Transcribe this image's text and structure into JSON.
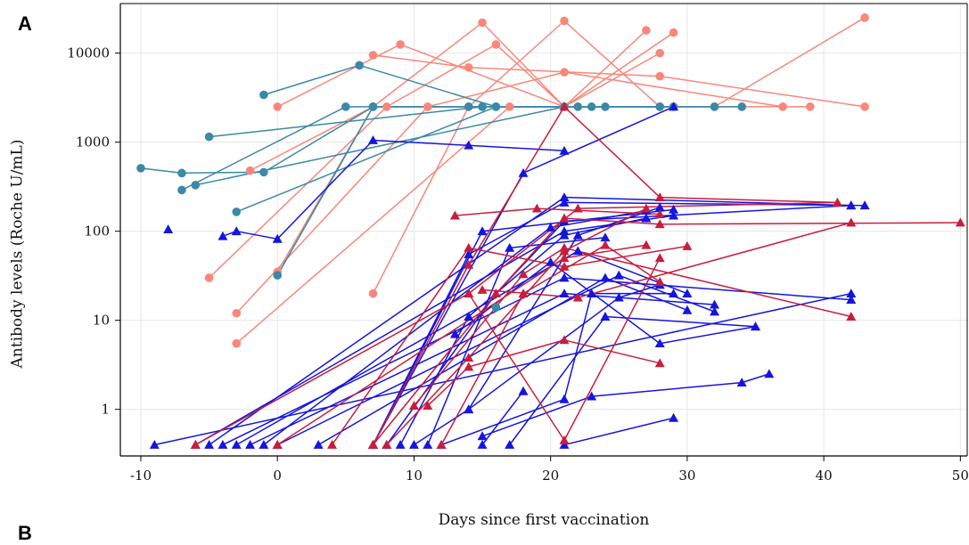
{
  "panel_label": "A",
  "next_panel_label": "B",
  "chart_data": {
    "type": "line",
    "xlabel": "Days since first vaccination",
    "ylabel": "Antibody levels (Roche U/mL)",
    "x_ticks": [
      -10,
      0,
      10,
      20,
      30,
      40,
      50
    ],
    "y_ticks": [
      1,
      10,
      100,
      1000,
      10000
    ],
    "y_tick_labels": [
      "1",
      "10",
      "100",
      "1000",
      "10000"
    ],
    "xlim": [
      -11.5,
      50.5
    ],
    "ylim": [
      0.3,
      36000
    ],
    "yscale": "log",
    "grid": true,
    "colors": {
      "salmon": "#F8877A",
      "teal": "#3A89A6",
      "blue": "#1515DD",
      "red": "#C81D3E"
    },
    "series": [
      {
        "group": "salmon",
        "marker": "circle",
        "points": [
          [
            7,
            9500
          ],
          [
            14,
            6900
          ],
          [
            28,
            5500
          ],
          [
            43,
            2500
          ]
        ]
      },
      {
        "group": "salmon",
        "marker": "circle",
        "points": [
          [
            0,
            2500
          ],
          [
            9,
            12500
          ],
          [
            21,
            2500
          ],
          [
            27,
            18000
          ]
        ]
      },
      {
        "group": "salmon",
        "marker": "circle",
        "points": [
          [
            -2,
            480
          ],
          [
            7,
            2500
          ],
          [
            15,
            22000
          ],
          [
            21,
            2500
          ],
          [
            28,
            10000
          ]
        ]
      },
      {
        "group": "salmon",
        "marker": "circle",
        "points": [
          [
            -5,
            30
          ],
          [
            8,
            2500
          ],
          [
            16,
            12500
          ],
          [
            21,
            2500
          ],
          [
            29,
            17000
          ]
        ]
      },
      {
        "group": "salmon",
        "marker": "circle",
        "points": [
          [
            0,
            35
          ],
          [
            7,
            2500
          ],
          [
            14,
            2500
          ],
          [
            21,
            23000
          ],
          [
            28,
            2500
          ],
          [
            39,
            2500
          ]
        ]
      },
      {
        "group": "salmon",
        "marker": "circle",
        "points": [
          [
            -3,
            12
          ],
          [
            11,
            2500
          ],
          [
            21,
            6100
          ],
          [
            37,
            2500
          ]
        ]
      },
      {
        "group": "salmon",
        "marker": "circle",
        "points": [
          [
            -3,
            5.5
          ],
          [
            17,
            2500
          ],
          [
            28,
            2500
          ]
        ]
      },
      {
        "group": "salmon",
        "marker": "circle",
        "points": [
          [
            7,
            20
          ],
          [
            14,
            2500
          ],
          [
            32,
            2500
          ],
          [
            43,
            25000
          ]
        ]
      },
      {
        "group": "teal",
        "marker": "circle",
        "points": [
          [
            -10,
            510
          ],
          [
            -7,
            450
          ],
          [
            -1,
            460
          ],
          [
            7,
            2500
          ],
          [
            14,
            2500
          ]
        ]
      },
      {
        "group": "teal",
        "marker": "circle",
        "points": [
          [
            -5,
            1150
          ],
          [
            15,
            2500
          ],
          [
            24,
            2500
          ]
        ]
      },
      {
        "group": "teal",
        "marker": "circle",
        "points": [
          [
            -1,
            3400
          ],
          [
            6,
            7300
          ],
          [
            16,
            2500
          ],
          [
            22,
            2500
          ]
        ]
      },
      {
        "group": "teal",
        "marker": "circle",
        "points": [
          [
            -7,
            290
          ],
          [
            5,
            2500
          ],
          [
            15,
            2500
          ],
          [
            28,
            2500
          ]
        ]
      },
      {
        "group": "teal",
        "marker": "circle",
        "points": [
          [
            -6,
            330
          ],
          [
            21,
            2500
          ],
          [
            32,
            2500
          ]
        ]
      },
      {
        "group": "teal",
        "marker": "circle",
        "points": [
          [
            -3,
            165
          ],
          [
            16,
            2500
          ],
          [
            29,
            2500
          ]
        ]
      },
      {
        "group": "teal",
        "marker": "circle",
        "points": [
          [
            0,
            32
          ],
          [
            7,
            2500
          ],
          [
            23,
            2500
          ],
          [
            34,
            2500
          ]
        ]
      },
      {
        "group": "teal",
        "marker": "circle",
        "points": [
          [
            16,
            14
          ]
        ]
      },
      {
        "group": "blue",
        "marker": "triangle",
        "points": [
          [
            -8,
            105
          ]
        ]
      },
      {
        "group": "blue",
        "marker": "triangle",
        "points": [
          [
            -4,
            88
          ],
          [
            -3,
            100
          ],
          [
            0,
            82
          ],
          [
            7,
            1050
          ],
          [
            14,
            920
          ],
          [
            21,
            800
          ]
        ]
      },
      {
        "group": "blue",
        "marker": "triangle",
        "points": [
          [
            -9,
            0.4
          ],
          [
            42,
            20
          ]
        ]
      },
      {
        "group": "blue",
        "marker": "triangle",
        "points": [
          [
            -6,
            0.4
          ],
          [
            21,
            100
          ],
          [
            29,
            150
          ]
        ]
      },
      {
        "group": "blue",
        "marker": "triangle",
        "points": [
          [
            -5,
            0.4
          ],
          [
            21,
            240
          ],
          [
            42,
            195
          ]
        ]
      },
      {
        "group": "blue",
        "marker": "triangle",
        "points": [
          [
            -4,
            0.4
          ],
          [
            21,
            30
          ],
          [
            42,
            17
          ]
        ]
      },
      {
        "group": "blue",
        "marker": "triangle",
        "points": [
          [
            -3,
            0.4
          ],
          [
            22,
            60
          ],
          [
            30,
            20
          ]
        ]
      },
      {
        "group": "blue",
        "marker": "triangle",
        "points": [
          [
            -2,
            0.4
          ],
          [
            21,
            20
          ],
          [
            32,
            15
          ]
        ]
      },
      {
        "group": "blue",
        "marker": "triangle",
        "points": [
          [
            -1,
            0.4
          ],
          [
            20,
            110
          ],
          [
            27,
            170
          ]
        ]
      },
      {
        "group": "blue",
        "marker": "triangle",
        "points": [
          [
            0,
            0.4
          ],
          [
            25,
            32
          ],
          [
            32,
            12.5
          ]
        ]
      },
      {
        "group": "blue",
        "marker": "triangle",
        "points": [
          [
            3,
            0.4
          ],
          [
            24,
            30
          ],
          [
            30,
            13
          ]
        ]
      },
      {
        "group": "blue",
        "marker": "triangle",
        "points": [
          [
            7,
            0.4
          ],
          [
            15,
            100
          ],
          [
            29,
            175
          ]
        ]
      },
      {
        "group": "blue",
        "marker": "triangle",
        "points": [
          [
            7,
            0.4
          ],
          [
            18,
            450
          ],
          [
            29,
            2500
          ]
        ]
      },
      {
        "group": "blue",
        "marker": "triangle",
        "points": [
          [
            7,
            0.4
          ],
          [
            14,
            55
          ],
          [
            21,
            210
          ],
          [
            43,
            195
          ]
        ]
      },
      {
        "group": "blue",
        "marker": "triangle",
        "points": [
          [
            8,
            0.4
          ],
          [
            16,
            20
          ],
          [
            21,
            130
          ],
          [
            42,
            195
          ]
        ]
      },
      {
        "group": "blue",
        "marker": "triangle",
        "points": [
          [
            9,
            0.4
          ],
          [
            14,
            11
          ],
          [
            21,
            90
          ],
          [
            27,
            140
          ]
        ]
      },
      {
        "group": "blue",
        "marker": "triangle",
        "points": [
          [
            10,
            0.4
          ],
          [
            14,
            1.0
          ],
          [
            22,
            90
          ],
          [
            28,
            185
          ]
        ]
      },
      {
        "group": "blue",
        "marker": "triangle",
        "points": [
          [
            11,
            0.4
          ],
          [
            17,
            65
          ],
          [
            24,
            85
          ]
        ]
      },
      {
        "group": "blue",
        "marker": "triangle",
        "points": [
          [
            12,
            0.4
          ],
          [
            21,
            1.3
          ],
          [
            23,
            20
          ],
          [
            29,
            20
          ]
        ]
      },
      {
        "group": "blue",
        "marker": "triangle",
        "points": [
          [
            15,
            0.4
          ],
          [
            18,
            1.6
          ]
        ]
      },
      {
        "group": "blue",
        "marker": "triangle",
        "points": [
          [
            15,
            0.5
          ],
          [
            23,
            1.4
          ],
          [
            34,
            2.0
          ],
          [
            36,
            2.5
          ]
        ]
      },
      {
        "group": "blue",
        "marker": "triangle",
        "points": [
          [
            17,
            0.4
          ],
          [
            24,
            11
          ],
          [
            35,
            8.5
          ]
        ]
      },
      {
        "group": "blue",
        "marker": "triangle",
        "points": [
          [
            21,
            0.4
          ],
          [
            29,
            0.8
          ]
        ]
      },
      {
        "group": "blue",
        "marker": "triangle",
        "points": [
          [
            13,
            7
          ],
          [
            20,
            45
          ],
          [
            28,
            5.5
          ],
          [
            35,
            8.5
          ]
        ]
      },
      {
        "group": "blue",
        "marker": "triangle",
        "points": [
          [
            14,
            1.0
          ],
          [
            25,
            18
          ],
          [
            28,
            25
          ]
        ]
      },
      {
        "group": "red",
        "marker": "triangle",
        "points": [
          [
            -6,
            0.4
          ],
          [
            14,
            20
          ],
          [
            22,
            180
          ],
          [
            41,
            210
          ]
        ]
      },
      {
        "group": "red",
        "marker": "triangle",
        "points": [
          [
            0,
            0.4
          ],
          [
            21,
            50
          ],
          [
            27,
            70
          ]
        ]
      },
      {
        "group": "red",
        "marker": "triangle",
        "points": [
          [
            4,
            0.4
          ],
          [
            14,
            65
          ],
          [
            21,
            40
          ],
          [
            30,
            68
          ]
        ]
      },
      {
        "group": "red",
        "marker": "triangle",
        "points": [
          [
            7,
            0.4
          ],
          [
            14,
            42
          ],
          [
            21,
            2500
          ],
          [
            28,
            240
          ],
          [
            41,
            210
          ]
        ]
      },
      {
        "group": "red",
        "marker": "triangle",
        "points": [
          [
            7,
            0.4
          ],
          [
            16,
            20
          ],
          [
            21,
            140
          ],
          [
            28,
            120
          ],
          [
            50,
            125
          ]
        ]
      },
      {
        "group": "red",
        "marker": "triangle",
        "points": [
          [
            8,
            0.4
          ],
          [
            14,
            3.8
          ],
          [
            21,
            60
          ],
          [
            27,
            180
          ]
        ]
      },
      {
        "group": "red",
        "marker": "triangle",
        "points": [
          [
            10,
            1.1
          ],
          [
            18,
            33
          ],
          [
            21,
            65
          ],
          [
            42,
            11
          ]
        ]
      },
      {
        "group": "red",
        "marker": "triangle",
        "points": [
          [
            11,
            1.1
          ],
          [
            14,
            3.0
          ],
          [
            21,
            6.0
          ],
          [
            28,
            3.3
          ]
        ]
      },
      {
        "group": "red",
        "marker": "triangle",
        "points": [
          [
            12,
            0.4
          ],
          [
            18,
            20
          ],
          [
            24,
            70
          ],
          [
            28,
            27
          ]
        ]
      },
      {
        "group": "red",
        "marker": "triangle",
        "points": [
          [
            13,
            150
          ],
          [
            19,
            180
          ],
          [
            28,
            155
          ]
        ]
      },
      {
        "group": "red",
        "marker": "triangle",
        "points": [
          [
            14,
            20
          ],
          [
            21,
            0.45
          ],
          [
            28,
            50
          ]
        ]
      },
      {
        "group": "red",
        "marker": "triangle",
        "points": [
          [
            15,
            22
          ],
          [
            22,
            18
          ],
          [
            42,
            125
          ]
        ]
      }
    ]
  }
}
